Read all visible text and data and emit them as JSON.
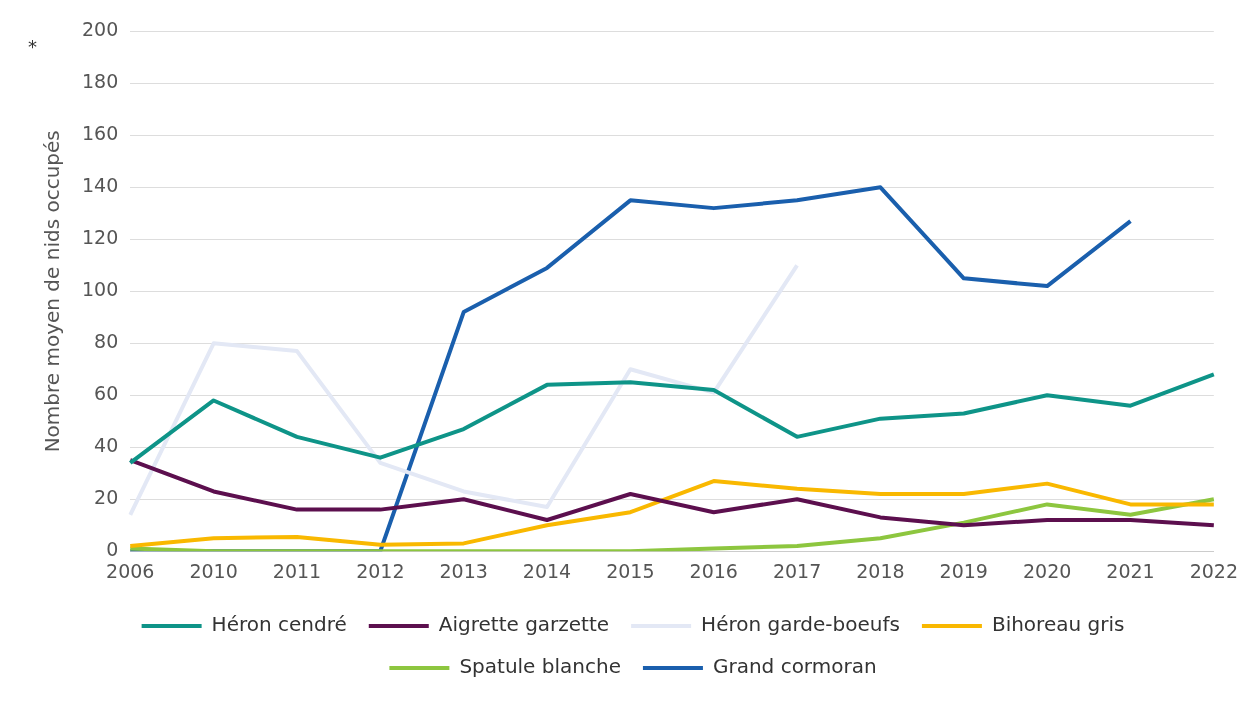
{
  "chart_data": {
    "type": "line",
    "ylabel": "Nombre moyen de nids occupés",
    "annotations": [
      "*"
    ],
    "categories": [
      "2006",
      "2010",
      "2011",
      "2012",
      "2013",
      "2014",
      "2015",
      "2016",
      "2017",
      "2018",
      "2019",
      "2020",
      "2021",
      "2022"
    ],
    "ylim": [
      0,
      200
    ],
    "yticks": [
      0,
      20,
      40,
      60,
      80,
      100,
      120,
      140,
      160,
      180,
      200
    ],
    "grid": "y",
    "legend": "bottom",
    "marker": "none",
    "line_style": "solid",
    "series": [
      {
        "name": "Héron cendré",
        "color": "#0e9488",
        "values": [
          34,
          58,
          44,
          36,
          47,
          64,
          65,
          62,
          44,
          51,
          53,
          60,
          56,
          68
        ]
      },
      {
        "name": "Aigrette garzette",
        "color": "#5c0f4e",
        "values": [
          35,
          23,
          16,
          16,
          20,
          12,
          22,
          15,
          20,
          13,
          10,
          12,
          12,
          10
        ]
      },
      {
        "name": "Héron garde-boeufs",
        "color": "#e3e8f5",
        "values": [
          14,
          80,
          77,
          34,
          23,
          17,
          70,
          61,
          110,
          null,
          null,
          null,
          null,
          null
        ]
      },
      {
        "name": "Bihoreau gris",
        "color": "#f9b800",
        "values": [
          2,
          5,
          5.5,
          2.5,
          3,
          10,
          15,
          27,
          24,
          22,
          22,
          26,
          18,
          18
        ]
      },
      {
        "name": "Spatule blanche",
        "color": "#8dc63f",
        "values": [
          1,
          0,
          0,
          0,
          0,
          0,
          0,
          1,
          2,
          5,
          11,
          18,
          14,
          20
        ]
      },
      {
        "name": "Grand cormoran",
        "color": "#1a5fad",
        "values": [
          0,
          0,
          0,
          0,
          92,
          109,
          135,
          132,
          135,
          140,
          105,
          102,
          127,
          null
        ]
      }
    ]
  }
}
